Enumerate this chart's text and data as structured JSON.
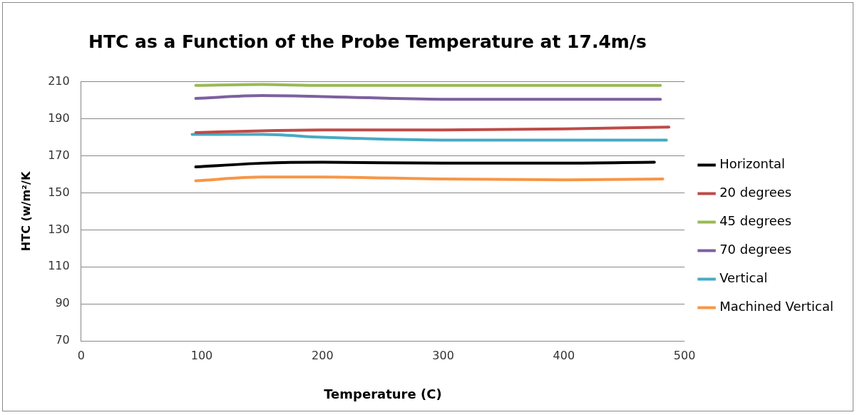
{
  "chart_data": {
    "type": "line",
    "title": "HTC as a Function of the Probe Temperature at 17.4m/s",
    "xlabel": "Temperature (C)",
    "ylabel": "HTC (w/m²/K",
    "xlim": [
      0,
      500
    ],
    "xticks": [
      0,
      100,
      200,
      300,
      400,
      500
    ],
    "ylim": [
      70,
      210
    ],
    "yticks": [
      70,
      90,
      110,
      130,
      150,
      170,
      190,
      210
    ],
    "grid": "y",
    "legend": "right",
    "marker": "none",
    "line_style": "solid",
    "series": [
      {
        "name": "Horizontal",
        "color": "#000000",
        "x": [
          95,
          150,
          200,
          300,
          400,
          475
        ],
        "values": [
          164,
          166,
          166.5,
          166,
          166,
          166.5
        ]
      },
      {
        "name": "20 degrees",
        "color": "#be4b48",
        "x": [
          95,
          150,
          200,
          300,
          400,
          487
        ],
        "values": [
          182.5,
          183.5,
          184,
          184,
          184.5,
          185.5
        ]
      },
      {
        "name": "45 degrees",
        "color": "#98b954",
        "x": [
          95,
          150,
          200,
          300,
          400,
          480
        ],
        "values": [
          208,
          208.5,
          208,
          208,
          208,
          208
        ]
      },
      {
        "name": "70 degrees",
        "color": "#7d60a0",
        "x": [
          95,
          150,
          200,
          300,
          400,
          480
        ],
        "values": [
          201,
          202.5,
          202,
          200.5,
          200.5,
          200.5
        ]
      },
      {
        "name": "Vertical",
        "color": "#46aac5",
        "x": [
          92,
          150,
          200,
          300,
          400,
          485
        ],
        "values": [
          181.5,
          181.5,
          180,
          178.5,
          178.5,
          178.5
        ]
      },
      {
        "name": "Machined Vertical",
        "color": "#f79646",
        "x": [
          95,
          150,
          200,
          300,
          400,
          482
        ],
        "values": [
          156.5,
          158.5,
          158.5,
          157.5,
          157,
          157.5
        ]
      }
    ]
  }
}
